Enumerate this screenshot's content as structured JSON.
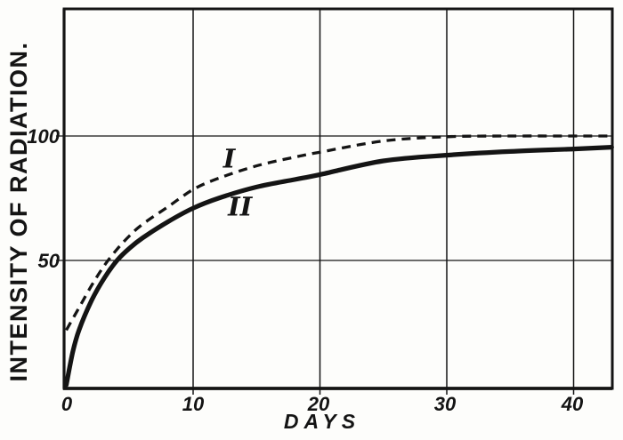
{
  "colors": {
    "ink": "#141414",
    "background": "#fdfdfb"
  },
  "chart_data": {
    "type": "line",
    "title": "",
    "xlabel": "DAYS",
    "ylabel": "INTENSITY OF RADIATION.",
    "xlim": [
      0,
      43
    ],
    "ylim": [
      0,
      151
    ],
    "xticks": [
      0,
      10,
      20,
      30,
      40
    ],
    "yticks": [
      50,
      100
    ],
    "xtick_labels": [
      "0",
      "10",
      "20",
      "30",
      "40"
    ],
    "ytick_labels": [
      "50",
      "100"
    ],
    "grid": true,
    "legend_position": "inline-curve-labels",
    "series": [
      {
        "name": "I",
        "label": "I",
        "style": "dashed",
        "x": [
          0,
          1,
          2,
          3,
          4,
          5,
          6,
          8,
          10,
          12,
          15,
          18,
          20,
          25,
          30,
          35,
          40,
          43
        ],
        "y": [
          22,
          31,
          40,
          48,
          54.5,
          60,
          64.5,
          71.5,
          78.5,
          83,
          88,
          91.5,
          93.5,
          98,
          99.7,
          100,
          100,
          100
        ],
        "label_pos": {
          "x": 12.85,
          "y": 91.2
        }
      },
      {
        "name": "II",
        "label": "II",
        "style": "solid",
        "x": [
          0,
          0.5,
          1,
          2,
          3,
          4,
          5,
          6,
          8,
          10,
          12,
          15,
          18,
          20,
          25,
          30,
          35,
          40,
          43
        ],
        "y": [
          0,
          13,
          22,
          34,
          43,
          50,
          55,
          59,
          65.5,
          71,
          75,
          79.5,
          82.5,
          84.5,
          90,
          92.3,
          93.8,
          94.8,
          95.5
        ],
        "label_pos": {
          "x": 13.7,
          "y": 72
        }
      }
    ]
  }
}
